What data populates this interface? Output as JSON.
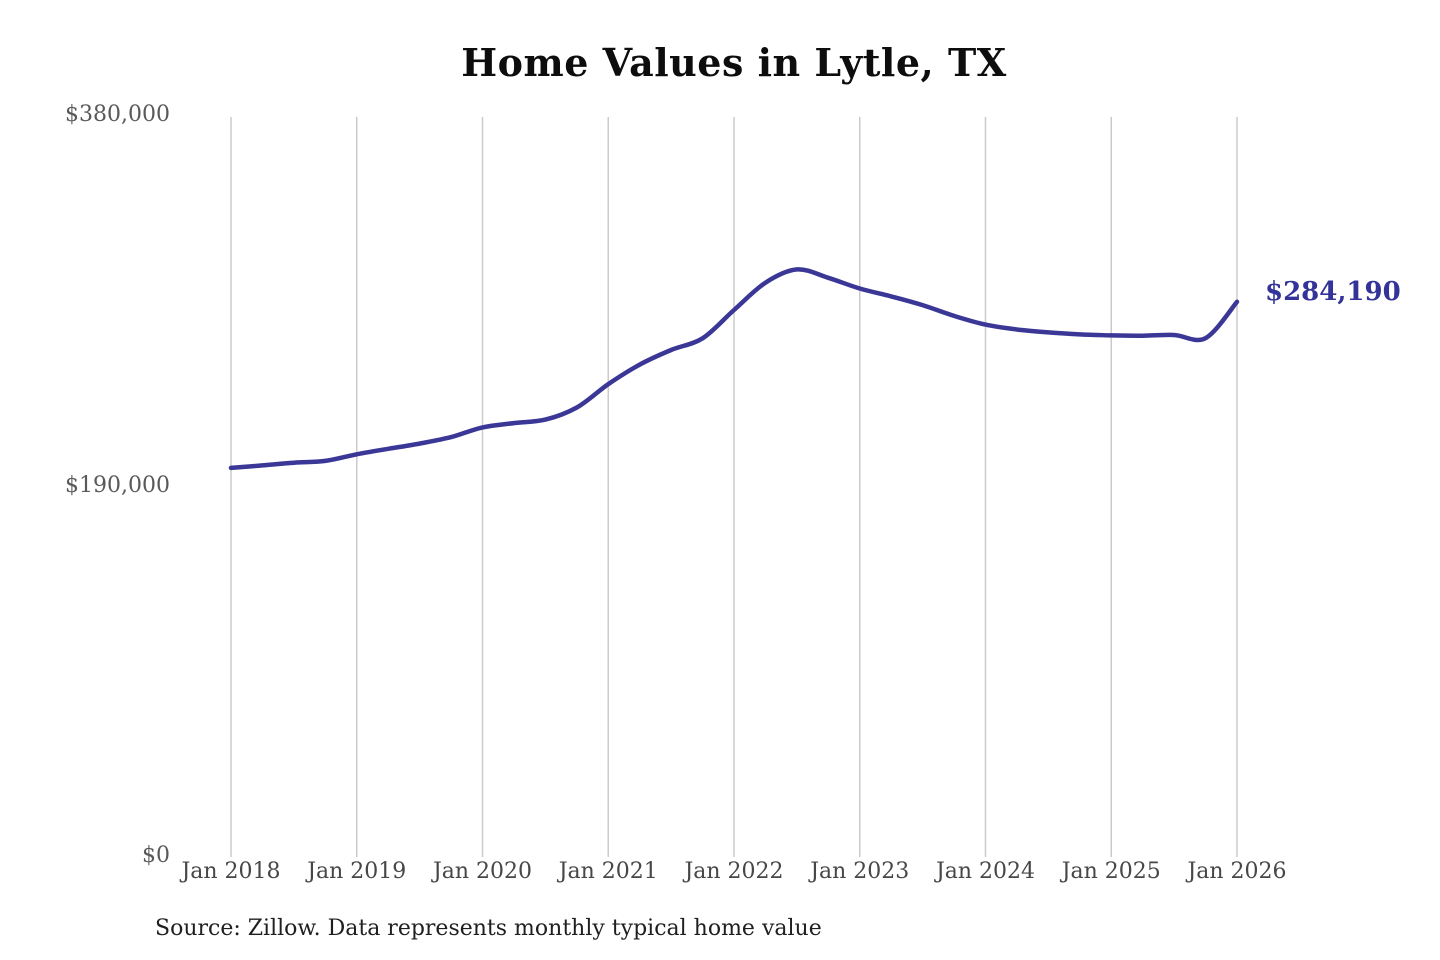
{
  "page": {
    "background_color": "#ffffff"
  },
  "chart_data": {
    "type": "line",
    "title": "Home Values in Lytle, TX",
    "source_note": "Source: Zillow. Data represents monthly typical home value",
    "legend": "none",
    "grid": "vertical-only",
    "end_label": "$284,190",
    "latest_value": 284190,
    "y_axis": {
      "range": [
        0,
        380000
      ],
      "ticks": [
        {
          "label": "$380,000",
          "value": 380000
        },
        {
          "label": "$190,000",
          "value": 190000
        },
        {
          "label": "$0",
          "value": 0
        }
      ]
    },
    "x_axis": {
      "ticks": [
        {
          "label": "Jan 2018",
          "date": "2018-01"
        },
        {
          "label": "Jan 2019",
          "date": "2019-01"
        },
        {
          "label": "Jan 2020",
          "date": "2020-01"
        },
        {
          "label": "Jan 2021",
          "date": "2021-01"
        },
        {
          "label": "Jan 2022",
          "date": "2022-01"
        },
        {
          "label": "Jan 2023",
          "date": "2023-01"
        },
        {
          "label": "Jan 2024",
          "date": "2024-01"
        },
        {
          "label": "Jan 2025",
          "date": "2025-01"
        },
        {
          "label": "Jan 2026",
          "date": "2026-01"
        }
      ]
    },
    "series": [
      {
        "name": "Monthly typical home value",
        "points": [
          [
            "2018-01",
            199000
          ],
          [
            "2018-04",
            200300
          ],
          [
            "2018-07",
            201700
          ],
          [
            "2018-10",
            202600
          ],
          [
            "2019-01",
            206000
          ],
          [
            "2019-04",
            208800
          ],
          [
            "2019-07",
            211500
          ],
          [
            "2019-10",
            214800
          ],
          [
            "2020-01",
            219800
          ],
          [
            "2020-04",
            222000
          ],
          [
            "2020-07",
            223800
          ],
          [
            "2020-10",
            230000
          ],
          [
            "2021-01",
            242000
          ],
          [
            "2021-04",
            252000
          ],
          [
            "2021-07",
            259500
          ],
          [
            "2021-10",
            265500
          ],
          [
            "2022-01",
            280000
          ],
          [
            "2022-04",
            294000
          ],
          [
            "2022-07",
            300800
          ],
          [
            "2022-10",
            296500
          ],
          [
            "2023-01",
            291000
          ],
          [
            "2023-04",
            287000
          ],
          [
            "2023-07",
            282500
          ],
          [
            "2023-10",
            277000
          ],
          [
            "2024-01",
            272500
          ],
          [
            "2024-04",
            270000
          ],
          [
            "2024-07",
            268500
          ],
          [
            "2024-10",
            267500
          ],
          [
            "2025-01",
            267000
          ],
          [
            "2025-04",
            266800
          ],
          [
            "2025-07",
            267200
          ],
          [
            "2025-10",
            265600
          ],
          [
            "2026-01",
            284190
          ]
        ]
      }
    ],
    "colors": {
      "line": "#3b3796",
      "end_label": "#333399",
      "gridline": "#cbcbcb",
      "y_tick_text": "#595959",
      "x_tick_text": "#474747",
      "title_text": "#0d0d0d",
      "source_text": "#1f1f1f"
    }
  }
}
